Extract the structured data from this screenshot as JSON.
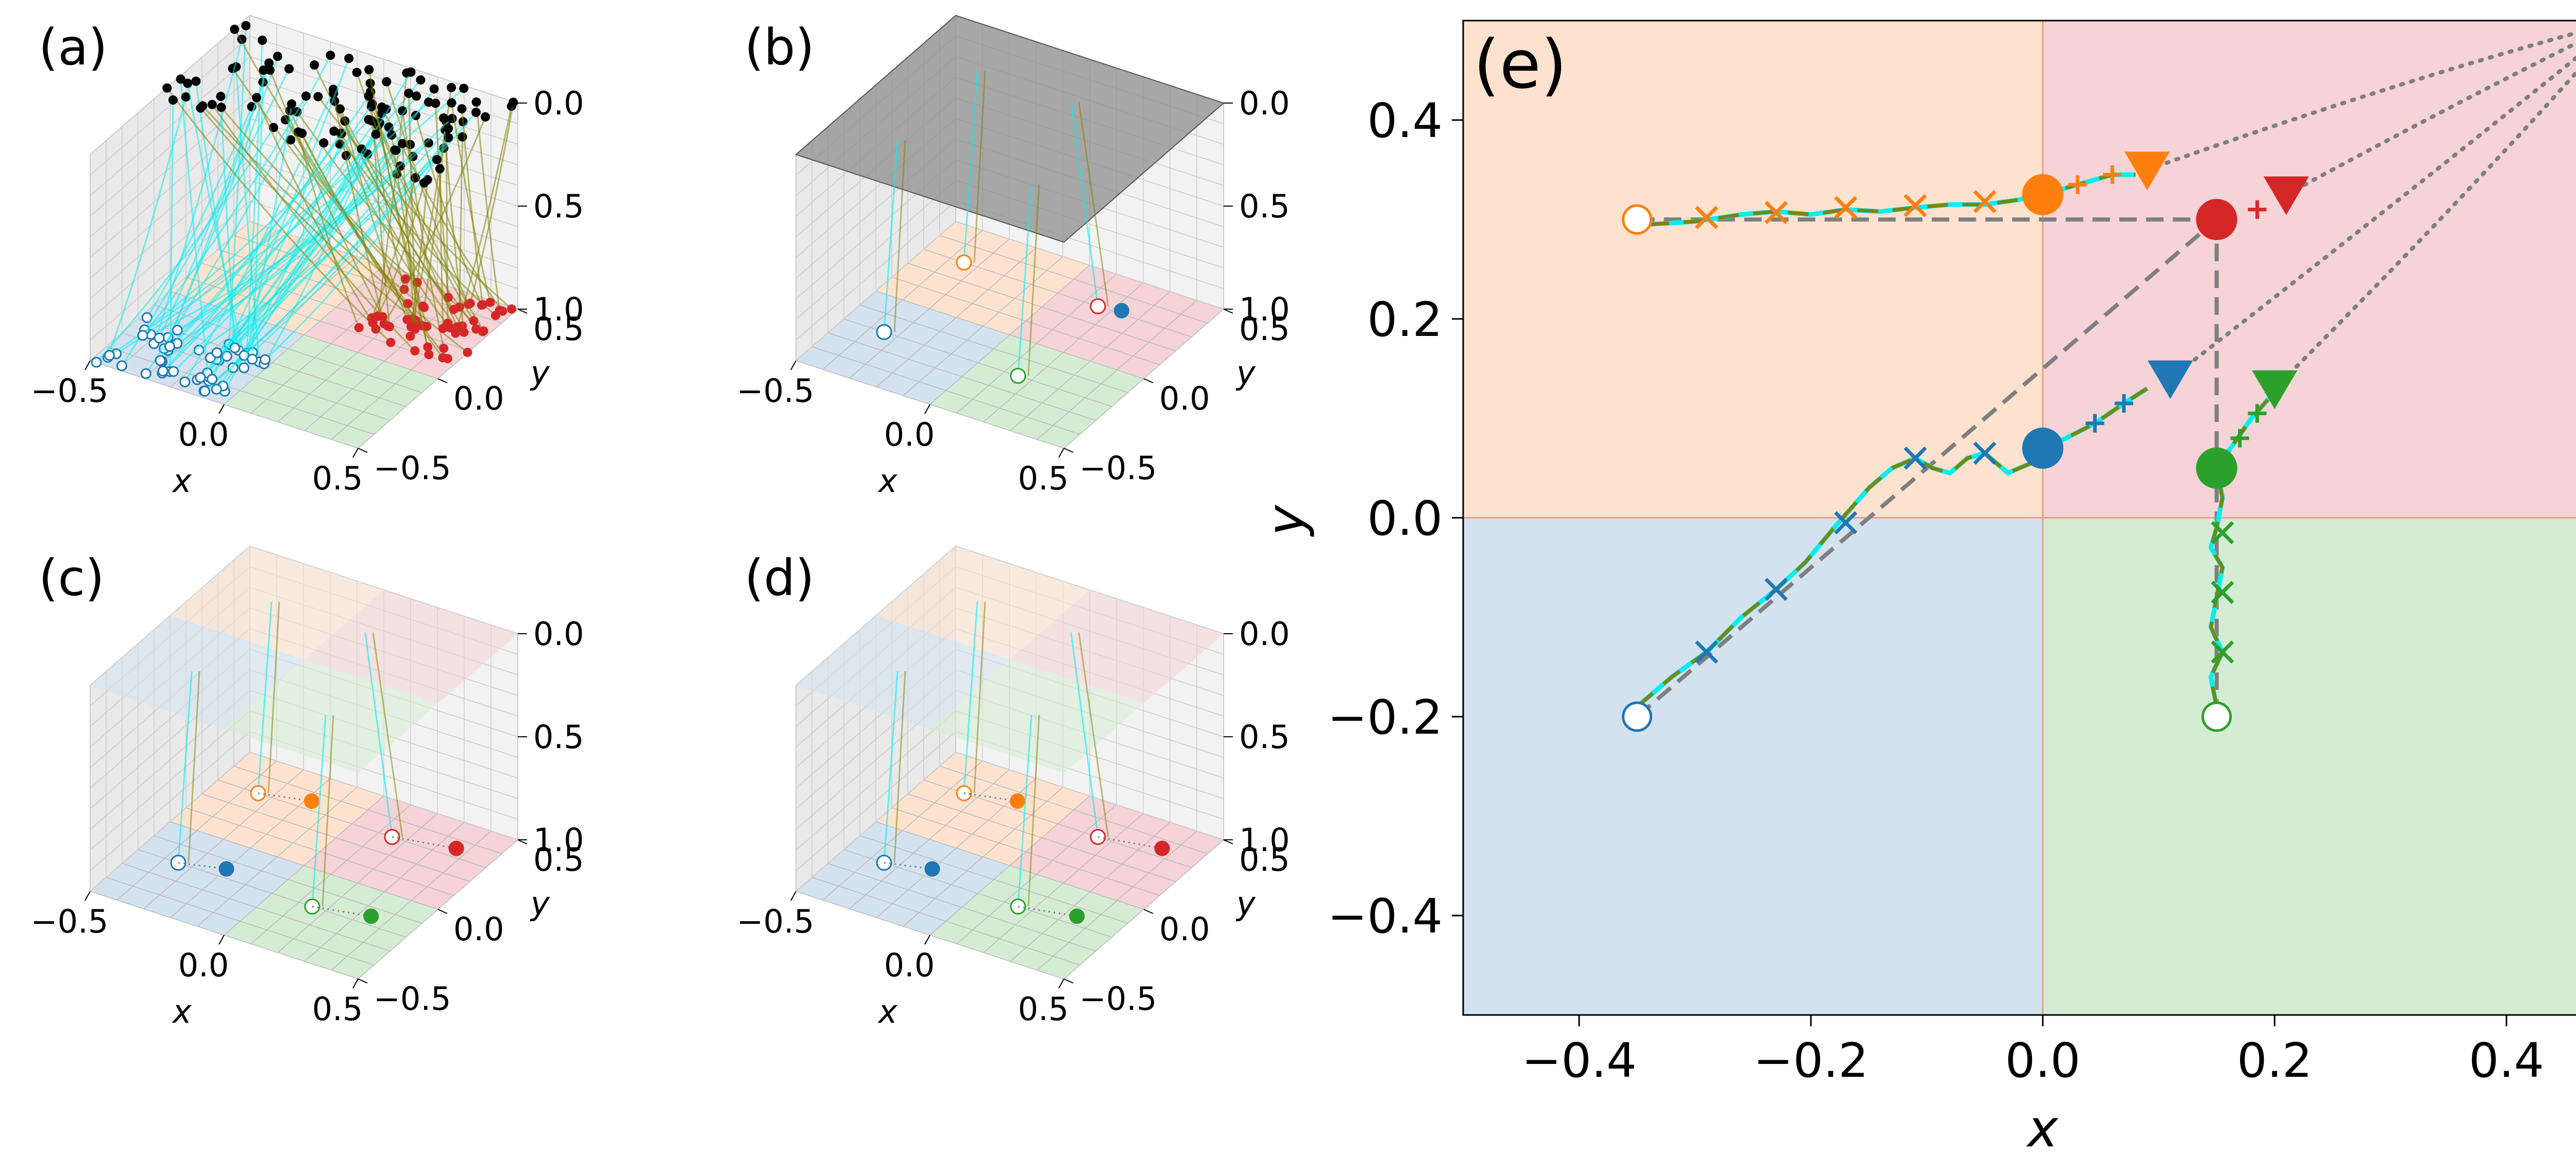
{
  "colors": {
    "blue": "#1f77b4",
    "orange": "#ff7f0e",
    "green": "#2ca02c",
    "red": "#d62728",
    "bg_blue": "#d4e2f0",
    "bg_orange": "#fde3cf",
    "bg_green": "#d5ecd4",
    "bg_red": "#f5d3d6",
    "traj_cyan": "#00f0f0",
    "traj_olive": "#808000",
    "gray": "#7f7f7f"
  },
  "panels_3d": [
    {
      "label": "(a)",
      "x_ticks": [
        "−0.5",
        "0.0",
        "0.5"
      ],
      "y_ticks": [
        "−0.5",
        "0.0",
        "0.5"
      ],
      "z_ticks": [
        "0.0",
        "0.5",
        "1.0"
      ],
      "xlabel": "x",
      "ylabel": "y"
    },
    {
      "label": "(b)",
      "x_ticks": [
        "−0.5",
        "0.0",
        "0.5"
      ],
      "y_ticks": [
        "−0.5",
        "0.0",
        "0.5"
      ],
      "z_ticks": [
        "0.0",
        "0.5",
        "1.0"
      ],
      "xlabel": "x",
      "ylabel": "y"
    },
    {
      "label": "(c)",
      "x_ticks": [
        "−0.5",
        "0.0",
        "0.5"
      ],
      "y_ticks": [
        "−0.5",
        "0.0",
        "0.5"
      ],
      "z_ticks": [
        "0.0",
        "0.5",
        "1.0"
      ],
      "xlabel": "x",
      "ylabel": "y"
    },
    {
      "label": "(d)",
      "x_ticks": [
        "−0.5",
        "0.0",
        "0.5"
      ],
      "y_ticks": [
        "−0.5",
        "0.0",
        "0.5"
      ],
      "z_ticks": [
        "0.0",
        "0.5",
        "1.0"
      ],
      "xlabel": "x",
      "ylabel": "y"
    }
  ],
  "chart_data": {
    "type": "scatter",
    "title": "(e)",
    "xlabel": "x",
    "ylabel": "y",
    "xlim": [
      -0.5,
      0.5
    ],
    "ylim": [
      -0.5,
      0.5
    ],
    "x_ticks": [
      -0.4,
      -0.2,
      0.0,
      0.2,
      0.4
    ],
    "x_tick_labels": [
      "−0.4",
      "−0.2",
      "0.0",
      "0.2",
      "0.4"
    ],
    "y_ticks": [
      -0.4,
      -0.2,
      0.0,
      0.2,
      0.4
    ],
    "y_tick_labels": [
      "−0.4",
      "−0.2",
      "0.0",
      "0.2",
      "0.4"
    ],
    "grid": false,
    "quadrants": [
      {
        "name": "bottom-left",
        "color": "bg_blue",
        "x": [
          -0.5,
          0.0
        ],
        "y": [
          -0.5,
          0.0
        ]
      },
      {
        "name": "top-left",
        "color": "bg_orange",
        "x": [
          -0.5,
          0.0
        ],
        "y": [
          0.0,
          0.5
        ]
      },
      {
        "name": "bottom-right",
        "color": "bg_green",
        "x": [
          0.0,
          0.5
        ],
        "y": [
          -0.5,
          0.0
        ]
      },
      {
        "name": "top-right",
        "color": "bg_red",
        "x": [
          0.0,
          0.5
        ],
        "y": [
          0.0,
          0.5
        ]
      }
    ],
    "agents": [
      {
        "name": "blue",
        "color": "blue",
        "start": [
          -0.35,
          -0.2
        ],
        "target": [
          0.0,
          0.07
        ],
        "triangle": [
          0.11,
          0.14
        ],
        "path": [
          [
            -0.35,
            -0.19
          ],
          [
            -0.32,
            -0.16
          ],
          [
            -0.29,
            -0.135
          ],
          [
            -0.26,
            -0.1
          ],
          [
            -0.23,
            -0.072
          ],
          [
            -0.205,
            -0.045
          ],
          [
            -0.18,
            -0.01
          ],
          [
            -0.165,
            0.01
          ],
          [
            -0.15,
            0.03
          ],
          [
            -0.13,
            0.05
          ],
          [
            -0.11,
            0.06
          ],
          [
            -0.095,
            0.05
          ],
          [
            -0.08,
            0.045
          ],
          [
            -0.065,
            0.06
          ],
          [
            -0.05,
            0.065
          ],
          [
            -0.03,
            0.045
          ],
          [
            -0.01,
            0.055
          ],
          [
            0.0,
            0.07
          ],
          [
            0.02,
            0.08
          ],
          [
            0.045,
            0.095
          ],
          [
            0.07,
            0.115
          ],
          [
            0.09,
            0.13
          ]
        ],
        "crosses": [
          [
            -0.29,
            -0.135
          ],
          [
            -0.23,
            -0.072
          ],
          [
            -0.17,
            -0.005
          ],
          [
            -0.11,
            0.06
          ],
          [
            -0.05,
            0.065
          ]
        ],
        "pluses": [
          [
            0.045,
            0.095
          ],
          [
            0.07,
            0.115
          ]
        ],
        "dashed": [
          [
            -0.35,
            -0.2
          ],
          [
            0.15,
            0.3
          ]
        ],
        "dotted_to": [
          0.5,
          0.5
        ]
      },
      {
        "name": "orange",
        "color": "orange",
        "start": [
          -0.35,
          0.3
        ],
        "target": [
          0.0,
          0.325
        ],
        "triangle": [
          0.09,
          0.35
        ],
        "path": [
          [
            -0.34,
            0.295
          ],
          [
            -0.3,
            0.298
          ],
          [
            -0.26,
            0.305
          ],
          [
            -0.23,
            0.308
          ],
          [
            -0.2,
            0.305
          ],
          [
            -0.17,
            0.31
          ],
          [
            -0.14,
            0.308
          ],
          [
            -0.11,
            0.312
          ],
          [
            -0.08,
            0.315
          ],
          [
            -0.05,
            0.315
          ],
          [
            -0.02,
            0.32
          ],
          [
            0.0,
            0.325
          ],
          [
            0.03,
            0.335
          ],
          [
            0.06,
            0.345
          ],
          [
            0.08,
            0.345
          ]
        ],
        "crosses": [
          [
            -0.29,
            0.302
          ],
          [
            -0.23,
            0.307
          ],
          [
            -0.17,
            0.312
          ],
          [
            -0.11,
            0.314
          ],
          [
            -0.05,
            0.318
          ]
        ],
        "pluses": [
          [
            0.03,
            0.335
          ],
          [
            0.06,
            0.345
          ]
        ],
        "dashed": [
          [
            -0.35,
            0.3
          ],
          [
            0.15,
            0.3
          ]
        ],
        "dotted_to": [
          0.5,
          0.5
        ]
      },
      {
        "name": "green",
        "color": "green",
        "start": [
          0.15,
          -0.2
        ],
        "target": [
          0.15,
          0.05
        ],
        "triangle": [
          0.2,
          0.13
        ],
        "path": [
          [
            0.15,
            -0.19
          ],
          [
            0.145,
            -0.16
          ],
          [
            0.155,
            -0.135
          ],
          [
            0.145,
            -0.11
          ],
          [
            0.15,
            -0.08
          ],
          [
            0.155,
            -0.05
          ],
          [
            0.145,
            -0.03
          ],
          [
            0.15,
            -0.01
          ],
          [
            0.155,
            0.02
          ],
          [
            0.15,
            0.05
          ],
          [
            0.165,
            0.075
          ],
          [
            0.18,
            0.1
          ],
          [
            0.195,
            0.12
          ]
        ],
        "crosses": [
          [
            0.155,
            -0.135
          ],
          [
            0.155,
            -0.075
          ],
          [
            0.155,
            -0.015
          ]
        ],
        "pluses": [
          [
            0.17,
            0.08
          ],
          [
            0.185,
            0.105
          ]
        ],
        "dashed": [
          [
            0.15,
            -0.2
          ],
          [
            0.15,
            0.3
          ]
        ],
        "dotted_to": [
          0.5,
          0.5
        ]
      },
      {
        "name": "red",
        "color": "red",
        "start": null,
        "target": [
          0.15,
          0.3
        ],
        "triangle": [
          0.21,
          0.325
        ],
        "path": [],
        "crosses": [],
        "pluses": [
          [
            0.185,
            0.31
          ]
        ],
        "dashed": [],
        "dotted_to": [
          0.5,
          0.5
        ]
      }
    ]
  }
}
